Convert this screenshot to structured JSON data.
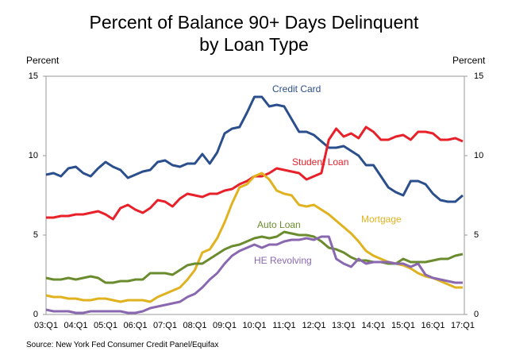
{
  "chart_data": {
    "type": "line",
    "title": [
      "Percent of Balance 90+ Days Delinquent",
      "by Loan Type"
    ],
    "y_label": "Percent",
    "y2_label": "Percent",
    "source": "Source: New York Fed Consumer Credit Panel/Equifax",
    "categories": [
      "03:Q1",
      null,
      null,
      null,
      "04:Q1",
      null,
      null,
      null,
      "05:Q1",
      null,
      null,
      null,
      "06:Q1",
      null,
      null,
      null,
      "07:Q1",
      null,
      null,
      null,
      "08:Q1",
      null,
      null,
      null,
      "09:Q1",
      null,
      null,
      null,
      "10:Q1",
      null,
      null,
      null,
      "11:Q1",
      null,
      null,
      null,
      "12:Q1",
      null,
      null,
      null,
      "13:Q1",
      null,
      null,
      null,
      "14:Q1",
      null,
      null,
      null,
      "15:Q1",
      null,
      null,
      null,
      "16:Q1",
      null,
      null,
      null,
      "17:Q1"
    ],
    "ylim": [
      0,
      15
    ],
    "yticks": [
      0,
      5,
      10,
      15
    ],
    "y2lim": [
      0,
      15
    ],
    "y2ticks": [
      0,
      5,
      10,
      15
    ],
    "grid": false,
    "series": [
      {
        "name": "Credit Card",
        "color": "#2b4f8c",
        "values": [
          8.8,
          8.9,
          8.7,
          9.2,
          9.3,
          8.9,
          8.7,
          9.2,
          9.6,
          9.3,
          9.1,
          8.6,
          8.8,
          9.0,
          9.1,
          9.6,
          9.7,
          9.4,
          9.3,
          9.5,
          9.5,
          10.1,
          9.5,
          10.2,
          11.4,
          11.7,
          11.8,
          12.7,
          13.7,
          13.7,
          13.1,
          13.2,
          13.1,
          12.3,
          11.5,
          11.5,
          11.3,
          10.9,
          10.5,
          10.5,
          10.6,
          10.3,
          10.0,
          9.4,
          9.4,
          8.7,
          8.0,
          7.7,
          7.5,
          8.4,
          8.4,
          8.2,
          7.6,
          7.2,
          7.1,
          7.1,
          7.5
        ]
      },
      {
        "name": "Student Loan",
        "color": "#e8202a",
        "values": [
          6.1,
          6.1,
          6.2,
          6.2,
          6.3,
          6.3,
          6.4,
          6.5,
          6.3,
          6.0,
          6.7,
          6.9,
          6.6,
          6.4,
          6.7,
          7.2,
          7.1,
          6.8,
          7.3,
          7.6,
          7.5,
          7.4,
          7.6,
          7.6,
          7.8,
          7.9,
          8.2,
          8.4,
          8.7,
          8.7,
          8.9,
          9.2,
          9.1,
          9.0,
          8.9,
          8.5,
          8.7,
          8.9,
          11.0,
          11.7,
          11.2,
          11.4,
          11.1,
          11.8,
          11.5,
          11.0,
          11.0,
          11.2,
          11.3,
          11.0,
          11.5,
          11.5,
          11.4,
          11.0,
          11.0,
          11.1,
          10.9
        ]
      },
      {
        "name": "Mortgage",
        "color": "#e0b21f",
        "values": [
          1.2,
          1.1,
          1.1,
          1.0,
          1.0,
          0.9,
          0.9,
          1.0,
          1.0,
          0.9,
          0.8,
          0.9,
          0.9,
          0.9,
          0.8,
          1.1,
          1.3,
          1.5,
          1.7,
          2.2,
          2.8,
          3.9,
          4.1,
          4.8,
          5.8,
          7.0,
          8.0,
          8.2,
          8.7,
          8.9,
          8.5,
          7.8,
          7.6,
          7.5,
          6.9,
          6.8,
          6.9,
          6.6,
          6.3,
          5.9,
          5.5,
          5.1,
          4.6,
          4.0,
          3.7,
          3.5,
          3.3,
          3.2,
          3.1,
          2.9,
          2.6,
          2.4,
          2.3,
          2.1,
          1.9,
          1.7,
          1.7
        ]
      },
      {
        "name": "Auto Loan",
        "color": "#6b8c2e",
        "values": [
          2.3,
          2.2,
          2.2,
          2.3,
          2.2,
          2.3,
          2.4,
          2.3,
          2.0,
          2.0,
          2.1,
          2.1,
          2.2,
          2.2,
          2.6,
          2.6,
          2.6,
          2.5,
          2.8,
          3.1,
          3.2,
          3.2,
          3.5,
          3.8,
          4.1,
          4.3,
          4.4,
          4.6,
          4.8,
          4.9,
          4.8,
          4.9,
          5.2,
          5.1,
          5.0,
          5.0,
          4.9,
          4.6,
          4.2,
          4.1,
          3.9,
          3.6,
          3.4,
          3.4,
          3.3,
          3.3,
          3.2,
          3.2,
          3.5,
          3.3,
          3.3,
          3.3,
          3.4,
          3.5,
          3.5,
          3.7,
          3.8
        ]
      },
      {
        "name": "HE Revolving",
        "color": "#8a68b0",
        "values": [
          0.3,
          0.2,
          0.2,
          0.2,
          0.1,
          0.1,
          0.2,
          0.2,
          0.2,
          0.2,
          0.2,
          0.1,
          0.1,
          0.2,
          0.4,
          0.5,
          0.6,
          0.7,
          0.8,
          1.1,
          1.3,
          1.7,
          2.2,
          2.6,
          3.2,
          3.7,
          4.0,
          4.2,
          4.4,
          4.2,
          4.4,
          4.4,
          4.6,
          4.7,
          4.7,
          4.8,
          4.7,
          4.9,
          4.9,
          3.5,
          3.2,
          3.0,
          3.5,
          3.2,
          3.3,
          3.3,
          3.3,
          3.2,
          3.2,
          3.0,
          3.2,
          2.5,
          2.3,
          2.2,
          2.1,
          2.0,
          2.0
        ]
      }
    ]
  }
}
